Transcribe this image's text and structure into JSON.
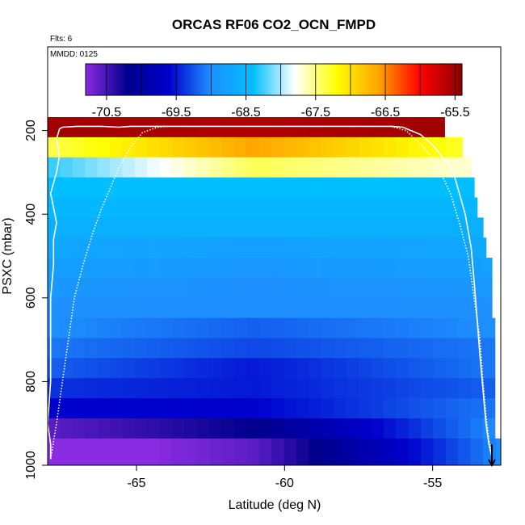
{
  "chart_data": {
    "type": "heatmap",
    "title": "ORCAS RF06 CO2_OCN_FMPD",
    "flights_label": "Flts: 6",
    "date_label": "MMDD: 0125",
    "xlabel": "Latitude (deg N)",
    "ylabel": "PSXC (mbar)",
    "xlim": [
      -68.0,
      -52.7
    ],
    "ylim": [
      1000,
      0
    ],
    "x_ticks": [
      -65,
      -60,
      -55
    ],
    "x_tick_labels": [
      "-65",
      "-60",
      "-55"
    ],
    "y_ticks": [
      200,
      400,
      600,
      800,
      1000
    ],
    "y_tick_labels": [
      "200",
      "400",
      "600",
      "800",
      "1000"
    ],
    "colorbar": {
      "range": [
        -70.8,
        -65.4
      ],
      "ticks": [
        -70.5,
        -69.5,
        -68.5,
        -67.5,
        -66.5,
        -65.5
      ],
      "tick_labels": [
        "-70.5",
        "-69.5",
        "-68.5",
        "-67.5",
        "-66.5",
        "-65.5"
      ],
      "stops": [
        "#8a2be2",
        "#00008b",
        "#0000cd",
        "#1e90ff",
        "#00bfff",
        "#ffffff",
        "#ffff00",
        "#ffa500",
        "#ff0000",
        "#8b0000"
      ]
    },
    "layers": [
      {
        "p_top": 168,
        "p_bot": 216,
        "lat_min": -68.0,
        "lat_max": -54.6,
        "v_left": -65.5,
        "v_mid": -65.6,
        "v_right": -65.5
      },
      {
        "p_top": 216,
        "p_bot": 264,
        "lat_min": -68.0,
        "lat_max": -54.0,
        "v_left": -67.4,
        "v_mid": -66.6,
        "v_right": -67.3
      },
      {
        "p_top": 264,
        "p_bot": 312,
        "lat_min": -68.0,
        "lat_max": -53.7,
        "v_left": -68.3,
        "v_mid": -67.4,
        "v_right": -67.7
      },
      {
        "p_top": 312,
        "p_bot": 360,
        "lat_min": -68.0,
        "lat_max": -53.6,
        "v_left": -68.4,
        "v_mid": -68.4,
        "v_right": -68.4
      },
      {
        "p_top": 360,
        "p_bot": 408,
        "lat_min": -68.0,
        "lat_max": -53.5,
        "v_left": -68.5,
        "v_mid": -68.5,
        "v_right": -68.5
      },
      {
        "p_top": 408,
        "p_bot": 456,
        "lat_min": -68.0,
        "lat_max": -53.3,
        "v_left": -68.6,
        "v_mid": -68.6,
        "v_right": -68.6
      },
      {
        "p_top": 456,
        "p_bot": 504,
        "lat_min": -68.0,
        "lat_max": -53.2,
        "v_left": -68.7,
        "v_mid": -68.8,
        "v_right": -68.7
      },
      {
        "p_top": 504,
        "p_bot": 552,
        "lat_min": -68.0,
        "lat_max": -53.0,
        "v_left": -68.8,
        "v_mid": -68.9,
        "v_right": -68.8
      },
      {
        "p_top": 552,
        "p_bot": 600,
        "lat_min": -68.0,
        "lat_max": -53.0,
        "v_left": -68.9,
        "v_mid": -69.0,
        "v_right": -68.9
      },
      {
        "p_top": 600,
        "p_bot": 648,
        "lat_min": -68.0,
        "lat_max": -53.0,
        "v_left": -69.0,
        "v_mid": -69.0,
        "v_right": -69.0
      },
      {
        "p_top": 648,
        "p_bot": 696,
        "lat_min": -68.0,
        "lat_max": -52.9,
        "v_left": -69.0,
        "v_mid": -69.2,
        "v_right": -69.0
      },
      {
        "p_top": 696,
        "p_bot": 744,
        "lat_min": -68.0,
        "lat_max": -52.9,
        "v_left": -69.1,
        "v_mid": -69.3,
        "v_right": -69.1
      },
      {
        "p_top": 744,
        "p_bot": 792,
        "lat_min": -68.0,
        "lat_max": -52.9,
        "v_left": -69.2,
        "v_mid": -69.5,
        "v_right": -69.1
      },
      {
        "p_top": 792,
        "p_bot": 840,
        "lat_min": -68.0,
        "lat_max": -52.9,
        "v_left": -69.4,
        "v_mid": -69.5,
        "v_right": -69.2
      },
      {
        "p_top": 840,
        "p_bot": 888,
        "lat_min": -68.0,
        "lat_max": -52.9,
        "v_left": -69.6,
        "v_mid": -69.6,
        "v_right": -69.1
      },
      {
        "p_top": 888,
        "p_bot": 936,
        "lat_min": -68.0,
        "lat_max": -52.9,
        "v_left": -70.6,
        "v_mid": -70.2,
        "v_right": -69.0
      },
      {
        "p_top": 936,
        "p_bot": 1000,
        "lat_min": -68.0,
        "lat_max": -52.7,
        "v_left": -71.0,
        "v_mid": -70.6,
        "v_right": -69.0
      }
    ],
    "flight_track": [
      [
        -67.9,
        985
      ],
      [
        -67.9,
        950
      ],
      [
        -68.0,
        900
      ],
      [
        -67.9,
        800
      ],
      [
        -67.9,
        700
      ],
      [
        -67.9,
        600
      ],
      [
        -67.8,
        520
      ],
      [
        -67.8,
        460
      ],
      [
        -67.7,
        420
      ],
      [
        -67.9,
        350
      ],
      [
        -67.7,
        300
      ],
      [
        -67.6,
        260
      ],
      [
        -67.7,
        220
      ],
      [
        -67.6,
        196
      ],
      [
        -67.5,
        192
      ],
      [
        -67.0,
        190
      ],
      [
        -66.2,
        190
      ],
      [
        -65.6,
        192
      ],
      [
        -65.2,
        190
      ],
      [
        -64.0,
        190
      ],
      [
        -60.0,
        190
      ],
      [
        -58.0,
        190
      ],
      [
        -56.4,
        190
      ],
      [
        -56.0,
        192
      ],
      [
        -55.4,
        210
      ],
      [
        -55.0,
        235
      ],
      [
        -54.6,
        270
      ],
      [
        -54.3,
        300
      ],
      [
        -54.1,
        350
      ],
      [
        -53.9,
        400
      ],
      [
        -53.7,
        480
      ],
      [
        -53.6,
        560
      ],
      [
        -53.5,
        650
      ],
      [
        -53.4,
        740
      ],
      [
        -53.3,
        820
      ],
      [
        -53.2,
        900
      ],
      [
        -53.1,
        950
      ],
      [
        -53.0,
        980
      ]
    ],
    "descent_track_left": [
      [
        -67.9,
        985
      ],
      [
        -67.7,
        900
      ],
      [
        -67.5,
        800
      ],
      [
        -67.3,
        700
      ],
      [
        -67.1,
        600
      ],
      [
        -66.8,
        520
      ],
      [
        -66.5,
        450
      ],
      [
        -66.2,
        390
      ],
      [
        -65.9,
        340
      ],
      [
        -65.6,
        290
      ],
      [
        -65.2,
        240
      ],
      [
        -64.8,
        205
      ],
      [
        -64.3,
        192
      ],
      [
        -64.0,
        190
      ]
    ],
    "descent_track_right": [
      [
        -56.4,
        190
      ],
      [
        -55.9,
        200
      ],
      [
        -55.3,
        240
      ],
      [
        -54.8,
        290
      ],
      [
        -54.4,
        350
      ],
      [
        -54.1,
        420
      ],
      [
        -53.8,
        500
      ],
      [
        -53.6,
        600
      ],
      [
        -53.4,
        700
      ],
      [
        -53.3,
        800
      ],
      [
        -53.2,
        880
      ],
      [
        -53.1,
        940
      ],
      [
        -53.0,
        970
      ]
    ],
    "end_marker": {
      "lat": -53.0,
      "p_from": 950,
      "p_to": 1000
    }
  }
}
